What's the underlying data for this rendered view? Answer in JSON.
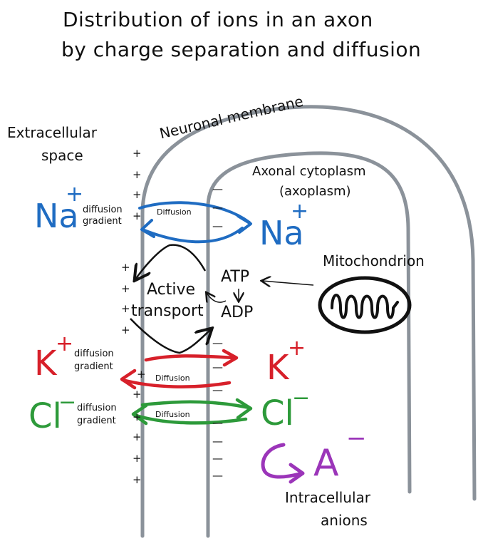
{
  "title": {
    "line1": "Distribution of ions in an axon",
    "line2": "by charge separation and diffusion"
  },
  "regions": {
    "extracellular_line1": "Extracellular",
    "extracellular_line2": "space",
    "membrane": "Neuronal membrane",
    "cytoplasm_line1": "Axonal cytoplasm",
    "cytoplasm_line2": "(axoplasm)",
    "mitochondrion": "Mitochondrion",
    "intracellular_line1": "Intracellular",
    "intracellular_line2": "anions"
  },
  "ions": {
    "na_out": "Na",
    "na_out_charge": "+",
    "na_in": "Na",
    "na_in_charge": "+",
    "k_out": "K",
    "k_out_charge": "+",
    "k_in": "K",
    "k_in_charge": "+",
    "cl_out": "Cl",
    "cl_out_charge": "−",
    "cl_in": "Cl",
    "cl_in_charge": "−",
    "anion": "A",
    "anion_charge": "−"
  },
  "gradients": {
    "na_line1": "diffusion",
    "na_line2": "gradient",
    "k_line1": "diffusion",
    "k_line2": "gradient",
    "cl_line1": "diffusion",
    "cl_line2": "gradient"
  },
  "arrows": {
    "na_diffusion": "Diffusion",
    "k_diffusion": "Diffusion",
    "cl_diffusion": "Diffusion"
  },
  "transport": {
    "active_line1": "Active",
    "active_line2": "transport",
    "atp": "ATP",
    "adp": "ADP"
  },
  "charges": {
    "plus": "+",
    "minus": "—"
  },
  "colors": {
    "sodium": "#1f6cc2",
    "potassium": "#d7202a",
    "chloride": "#2d9a3a",
    "anion": "#9b35b9",
    "membrane": "#8b929a",
    "ink": "#111111"
  }
}
